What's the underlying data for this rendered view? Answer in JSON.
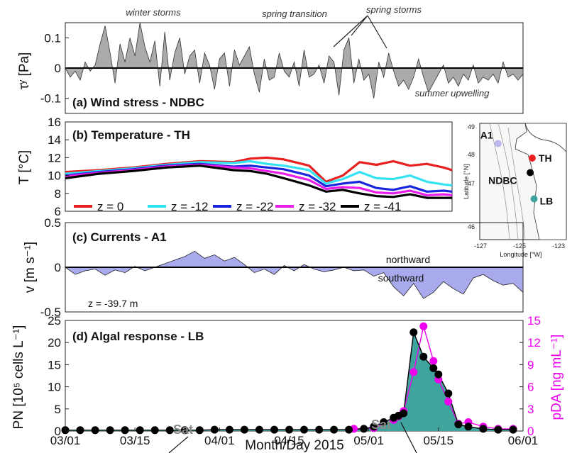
{
  "chart_data": [
    {
      "panel": "a",
      "type": "area",
      "title": "(a)  Wind stress - NDBC",
      "ylabel": "τʸ [Pa]",
      "ylim": [
        -0.15,
        0.15
      ],
      "yticks": [
        0.1,
        0,
        -0.1
      ],
      "ytick_labels": [
        "0.1",
        "0",
        "-0.1"
      ],
      "xlim_days": [
        0,
        92
      ],
      "annotations": [
        "winter storms",
        "spring transition",
        "spring storms",
        "summer upwelling"
      ],
      "series": [
        {
          "x": [
            0,
            1,
            2,
            3,
            4,
            5,
            6,
            7,
            8,
            9,
            10,
            11,
            12,
            13,
            14,
            15,
            16,
            17,
            18,
            19,
            20,
            21,
            22,
            23,
            24,
            25,
            26,
            27,
            28,
            29,
            30,
            31,
            32,
            33,
            34,
            35,
            36,
            37,
            38,
            39,
            40,
            41,
            42,
            43,
            44,
            45,
            46,
            47,
            48,
            49,
            50,
            51,
            52,
            53,
            54,
            55,
            56,
            57,
            58,
            59,
            60,
            61,
            62,
            63,
            64,
            65,
            66,
            67,
            68,
            69,
            70,
            71,
            72,
            73,
            74,
            75,
            76,
            77,
            78,
            79,
            80,
            81,
            82,
            83,
            84,
            85,
            86,
            87,
            88,
            89,
            90,
            91,
            92
          ],
          "values": [
            0,
            -0.03,
            -0.01,
            -0.04,
            0.02,
            -0.01,
            0.01,
            0.08,
            0.14,
            0.05,
            -0.05,
            0.08,
            0.02,
            0.1,
            0.04,
            0.15,
            0.07,
            0.02,
            0.09,
            -0.06,
            0.12,
            -0.04,
            0.05,
            0.1,
            -0.02,
            0.04,
            0.06,
            -0.05,
            0.05,
            0.01,
            -0.07,
            0.03,
            0.05,
            -0.06,
            0.06,
            0.01,
            0.04,
            0.07,
            -0.02,
            -0.08,
            0.03,
            -0.04,
            -0.03,
            0.05,
            -0.01,
            -0.03,
            0.02,
            -0.06,
            0.06,
            -0.03,
            -0.02,
            0.01,
            -0.05,
            0.04,
            0.02,
            -0.09,
            0.06,
            0.1,
            -0.05,
            0.03,
            -0.04,
            -0.02,
            -0.1,
            0.02,
            -0.03,
            0.05,
            -0.01,
            -0.06,
            -0.04,
            -0.07,
            -0.03,
            0.03,
            -0.03,
            -0.08,
            -0.05,
            -0.02,
            0.01,
            -0.05,
            -0.03,
            -0.06,
            -0.02,
            -0.04,
            0.01,
            -0.05,
            -0.03,
            -0.04,
            -0.02,
            -0.05,
            0.02,
            -0.03,
            -0.02,
            -0.04,
            -0.02
          ]
        }
      ]
    },
    {
      "panel": "b",
      "type": "line",
      "title": "(b)  Temperature - TH",
      "ylabel": "T [°C]",
      "ylim": [
        6,
        16
      ],
      "yticks": [
        6,
        8,
        10,
        12,
        14,
        16
      ],
      "xlim_days": [
        0,
        92
      ],
      "series": [
        {
          "name": "z = 0",
          "color": "#e8201f",
          "x": [
            0,
            8,
            16,
            24,
            32,
            40,
            44,
            48,
            52,
            58,
            62,
            66,
            70,
            74,
            78,
            82,
            86,
            90,
            92
          ],
          "values": [
            10.4,
            10.6,
            10.9,
            11.3,
            11.6,
            11.5,
            11.9,
            12.0,
            11.8,
            11.1,
            9.3,
            10.0,
            11.5,
            11.2,
            11.6,
            11.1,
            11.3,
            10.9,
            10.6
          ]
        },
        {
          "name": "z = -12",
          "color": "#33e3f2",
          "x": [
            0,
            8,
            16,
            24,
            32,
            40,
            44,
            48,
            52,
            58,
            62,
            66,
            70,
            74,
            78,
            82,
            86,
            90,
            92
          ],
          "values": [
            10.2,
            10.5,
            10.8,
            11.2,
            11.5,
            11.4,
            11.6,
            11.3,
            11.1,
            10.6,
            9.1,
            9.6,
            10.4,
            9.7,
            9.6,
            10.0,
            9.3,
            9.0,
            8.9
          ]
        },
        {
          "name": "z = -22",
          "color": "#1a26dd",
          "x": [
            0,
            8,
            16,
            24,
            32,
            40,
            44,
            48,
            52,
            58,
            62,
            66,
            70,
            74,
            78,
            82,
            86,
            90,
            92
          ],
          "values": [
            10.0,
            10.4,
            10.7,
            11.1,
            11.3,
            11.0,
            11.1,
            10.9,
            10.7,
            10.0,
            8.8,
            9.1,
            9.3,
            8.6,
            8.4,
            8.8,
            8.2,
            8.3,
            8.2
          ]
        },
        {
          "name": "z = -32",
          "color": "#e81ee8",
          "x": [
            0,
            8,
            16,
            24,
            32,
            40,
            44,
            48,
            52,
            58,
            62,
            66,
            70,
            74,
            78,
            82,
            86,
            90,
            92
          ],
          "values": [
            9.9,
            10.3,
            10.6,
            11.0,
            11.2,
            10.9,
            10.8,
            10.5,
            10.2,
            9.5,
            8.5,
            8.7,
            8.6,
            8.1,
            8.0,
            8.3,
            7.8,
            7.9,
            7.8
          ]
        },
        {
          "name": "z = -41",
          "color": "#000000",
          "x": [
            0,
            8,
            16,
            24,
            32,
            40,
            44,
            48,
            52,
            58,
            62,
            66,
            70,
            74,
            78,
            82,
            86,
            90,
            92
          ],
          "values": [
            9.7,
            10.2,
            10.5,
            10.9,
            11.1,
            10.6,
            10.5,
            10.2,
            9.7,
            8.9,
            8.2,
            8.4,
            8.0,
            7.7,
            7.6,
            7.9,
            7.5,
            7.5,
            7.5
          ]
        }
      ]
    },
    {
      "panel": "c",
      "type": "area",
      "title": "(c)  Currents - A1",
      "ylabel": "v [m s⁻¹]",
      "ylim": [
        -0.5,
        0.5
      ],
      "yticks": [
        0.5,
        0,
        -0.5
      ],
      "ytick_labels": [
        "0.5",
        "0",
        "-0.5"
      ],
      "xlim_days": [
        0,
        92
      ],
      "depth_label": "z = -39.7 m",
      "annotations": [
        "northward",
        "southward"
      ],
      "series": [
        {
          "x": [
            0,
            2,
            4,
            6,
            8,
            10,
            12,
            14,
            16,
            18,
            20,
            22,
            24,
            26,
            28,
            30,
            32,
            34,
            36,
            38,
            40,
            42,
            44,
            46,
            48,
            50,
            52,
            54,
            56,
            58,
            60,
            62,
            64,
            66,
            68,
            70,
            72,
            74,
            76,
            78,
            80,
            82,
            84,
            86,
            88,
            90,
            92
          ],
          "values": [
            0,
            -0.08,
            -0.04,
            -0.02,
            -0.09,
            -0.03,
            -0.06,
            0.01,
            -0.04,
            0.0,
            0.04,
            0.08,
            0.12,
            0.18,
            0.1,
            0.14,
            0.07,
            0.11,
            0.03,
            -0.06,
            -0.02,
            -0.08,
            0.02,
            -0.04,
            0.03,
            -0.02,
            -0.05,
            -0.03,
            0.0,
            -0.04,
            -0.03,
            -0.1,
            -0.06,
            -0.22,
            -0.32,
            -0.18,
            -0.35,
            -0.28,
            -0.16,
            -0.24,
            -0.3,
            -0.12,
            -0.08,
            -0.15,
            -0.2,
            -0.18,
            -0.28
          ]
        }
      ]
    },
    {
      "panel": "d",
      "type": "area",
      "title": "(d)  Algal response - LB",
      "ylabel": "PN [10⁵ cells L⁻¹]",
      "y2label": "pDA [ng mL⁻¹]",
      "ylim": [
        0,
        25
      ],
      "y2lim": [
        0,
        15
      ],
      "yticks": [
        0,
        5,
        10,
        15,
        20,
        25
      ],
      "y2ticks": [
        0,
        3,
        6,
        9,
        12,
        15
      ],
      "xlabel": "Month/Day 2015",
      "xticks": [
        "03/01",
        "03/15",
        "04/01",
        "04/15",
        "05/01",
        "05/15",
        "06/01"
      ],
      "xtick_days": [
        0,
        14,
        31,
        45,
        61,
        75,
        92
      ],
      "sat_label": "Sat",
      "series": [
        {
          "name": "PN",
          "color": "#000000",
          "fill": "#3fa39e",
          "x": [
            0,
            3,
            6,
            9,
            12,
            15,
            18,
            21,
            24,
            27,
            30,
            33,
            36,
            39,
            42,
            45,
            48,
            51,
            54,
            57,
            60,
            62,
            64,
            66,
            67,
            68,
            70,
            72,
            74,
            75,
            77,
            79,
            81,
            84,
            87,
            90
          ],
          "values": [
            0.2,
            0.2,
            0.2,
            0.2,
            0.2,
            0.2,
            0.2,
            0.2,
            0.2,
            0.2,
            0.3,
            0.3,
            0.3,
            0.3,
            0.3,
            0.3,
            0.3,
            0.3,
            0.3,
            0.3,
            0.5,
            1.0,
            2.0,
            3.0,
            3.5,
            4.0,
            22.3,
            16.8,
            14.2,
            12.8,
            8.5,
            1.5,
            1.0,
            0.5,
            0.3,
            0.3
          ]
        },
        {
          "name": "pDA",
          "color": "#ee00ee",
          "x": [
            58,
            62,
            66,
            67,
            68,
            70,
            72,
            74,
            75,
            77,
            79,
            81,
            84,
            87,
            90
          ],
          "values": [
            0.3,
            0.4,
            1.5,
            2.0,
            2.7,
            8.0,
            14.2,
            9.5,
            7.0,
            4.0,
            1.0,
            1.2,
            0.6,
            0.3,
            0.3
          ]
        }
      ]
    }
  ],
  "map": {
    "lat_label": "Latitude [°N]",
    "lon_label": "Longitude [°W]",
    "lat_ticks": [
      "49",
      "48",
      "47",
      "46"
    ],
    "lon_ticks": [
      "-127",
      "-125",
      "-123"
    ],
    "stations": [
      {
        "name": "A1",
        "color": "#b9b8ee",
        "lon": -126.1,
        "lat": 48.45
      },
      {
        "name": "TH",
        "color": "#e8201f",
        "lon": -124.35,
        "lat": 47.95
      },
      {
        "name": "NDBC",
        "color": "#000000",
        "lon": -124.45,
        "lat": 47.45
      },
      {
        "name": "LB",
        "color": "#3fa39e",
        "lon": -124.25,
        "lat": 46.55
      }
    ]
  }
}
